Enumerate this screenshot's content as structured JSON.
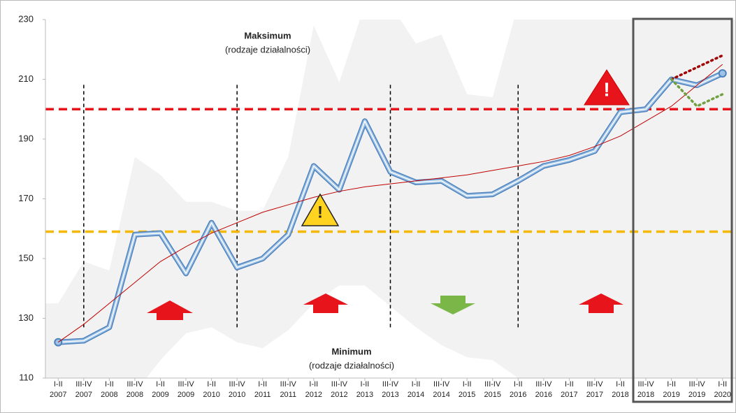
{
  "chart_data": {
    "type": "line",
    "categories": [
      [
        "I-II",
        "2007"
      ],
      [
        "III-IV",
        "2007"
      ],
      [
        "I-II",
        "2008"
      ],
      [
        "III-IV",
        "2008"
      ],
      [
        "I-II",
        "2009"
      ],
      [
        "III-IV",
        "2009"
      ],
      [
        "I-II",
        "2010"
      ],
      [
        "III-IV",
        "2010"
      ],
      [
        "I-II",
        "2011"
      ],
      [
        "III-IV",
        "2011"
      ],
      [
        "I-II",
        "2012"
      ],
      [
        "III-IV",
        "2012"
      ],
      [
        "I-II",
        "2013"
      ],
      [
        "III-IV",
        "2013"
      ],
      [
        "I-II",
        "2014"
      ],
      [
        "III-IV",
        "2014"
      ],
      [
        "I-II",
        "2015"
      ],
      [
        "III-IV",
        "2015"
      ],
      [
        "I-II",
        "2016"
      ],
      [
        "III-IV",
        "2016"
      ],
      [
        "I-II",
        "2017"
      ],
      [
        "III-IV",
        "2017"
      ],
      [
        "I-II",
        "2018"
      ],
      [
        "III-IV",
        "2018"
      ],
      [
        "I-II",
        "2019"
      ],
      [
        "III-IV",
        "2019"
      ],
      [
        "I-II",
        "2020"
      ]
    ],
    "series": [
      {
        "color": "#4f81bd",
        "style": "main",
        "values": [
          122,
          122.5,
          127,
          158,
          158.5,
          145,
          162,
          147,
          150,
          158,
          181,
          173,
          196,
          179,
          175.5,
          176,
          171,
          171.5,
          176,
          181,
          183,
          186,
          199,
          200,
          210,
          208,
          212
        ]
      },
      {
        "color": "#c00000",
        "style": "trend",
        "values": [
          122,
          128,
          135,
          142,
          149,
          154,
          158.5,
          162,
          165.5,
          168,
          170.5,
          172.5,
          174,
          175,
          176,
          177,
          178,
          179.5,
          181,
          182.5,
          184.5,
          187.5,
          191,
          196,
          201,
          208,
          215
        ]
      },
      {
        "color": "#a00000",
        "style": "dotted",
        "values": [
          null,
          null,
          null,
          null,
          null,
          null,
          null,
          null,
          null,
          null,
          null,
          null,
          null,
          null,
          null,
          null,
          null,
          null,
          null,
          null,
          null,
          null,
          null,
          null,
          210,
          214,
          218
        ]
      },
      {
        "color": "#70a040",
        "style": "dotted",
        "values": [
          null,
          null,
          null,
          null,
          null,
          null,
          null,
          null,
          null,
          null,
          null,
          null,
          null,
          null,
          null,
          null,
          null,
          null,
          null,
          null,
          null,
          null,
          null,
          null,
          210,
          201,
          205
        ]
      }
    ],
    "envelope": {
      "max": [
        135,
        149,
        146,
        184,
        178,
        169,
        169,
        166,
        166,
        184,
        228,
        209,
        235,
        235,
        222,
        225,
        205,
        204,
        235,
        235,
        235,
        235,
        235,
        235,
        235,
        235,
        235
      ],
      "min": [
        105,
        105,
        105,
        105,
        116,
        125,
        127,
        122,
        120,
        126,
        135,
        141,
        141,
        134,
        127,
        121,
        117,
        116,
        110,
        105,
        105,
        105,
        105,
        105,
        105,
        105,
        105
      ],
      "color": "#f2f2f2"
    },
    "hlines": [
      {
        "value": 200,
        "color": "#e8141c"
      },
      {
        "value": 159,
        "color": "#f5b800"
      }
    ],
    "vlines": {
      "x": [
        1,
        7,
        13,
        18
      ],
      "ymin": 127,
      "ymax": 209
    },
    "annotations": {
      "max_title": "Maksimum",
      "max_sub": "(rodzaje działalności)",
      "min_title": "Minimum",
      "min_sub": "(rodzaje działalności)"
    },
    "ylim": [
      110,
      230
    ],
    "yticks": [
      110,
      130,
      150,
      170,
      190,
      210,
      230
    ]
  }
}
